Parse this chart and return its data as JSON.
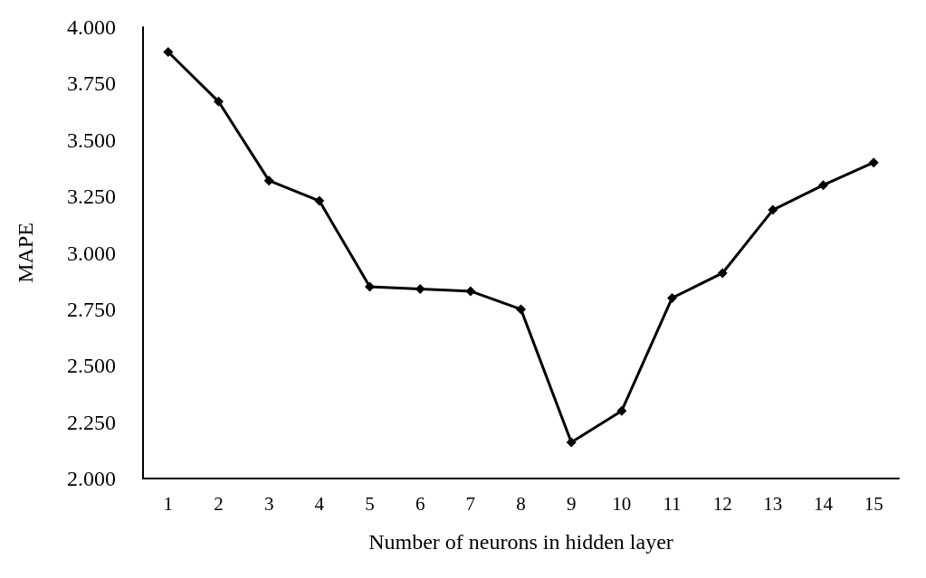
{
  "chart_data": {
    "type": "line",
    "xlabel": "Number of neurons in hidden layer",
    "ylabel": "MAPE",
    "x": [
      1,
      2,
      3,
      4,
      5,
      6,
      7,
      8,
      9,
      10,
      11,
      12,
      13,
      14,
      15
    ],
    "xlim": [
      0.5,
      15.5
    ],
    "xticks": [
      1,
      2,
      3,
      4,
      5,
      6,
      7,
      8,
      9,
      10,
      11,
      12,
      13,
      14,
      15
    ],
    "values": [
      3.89,
      3.67,
      3.32,
      3.23,
      2.85,
      2.84,
      2.83,
      2.75,
      2.16,
      2.3,
      2.8,
      2.91,
      3.19,
      3.3,
      3.4
    ],
    "color": "#000000",
    "ylim": [
      2,
      4
    ],
    "yticks": [
      {
        "value": 2,
        "label": "2.000"
      },
      {
        "value": 2.25,
        "label": "2.250"
      },
      {
        "value": 2.5,
        "label": "2.500"
      },
      {
        "value": 2.75,
        "label": "2.750"
      },
      {
        "value": 3,
        "label": "3.000"
      },
      {
        "value": 3.25,
        "label": "3.250"
      },
      {
        "value": 3.5,
        "label": "3.500"
      },
      {
        "value": 3.75,
        "label": "3.750"
      },
      {
        "value": 4,
        "label": "4.000"
      }
    ],
    "grid": false,
    "marker": "diamond",
    "line_style": "solid"
  }
}
